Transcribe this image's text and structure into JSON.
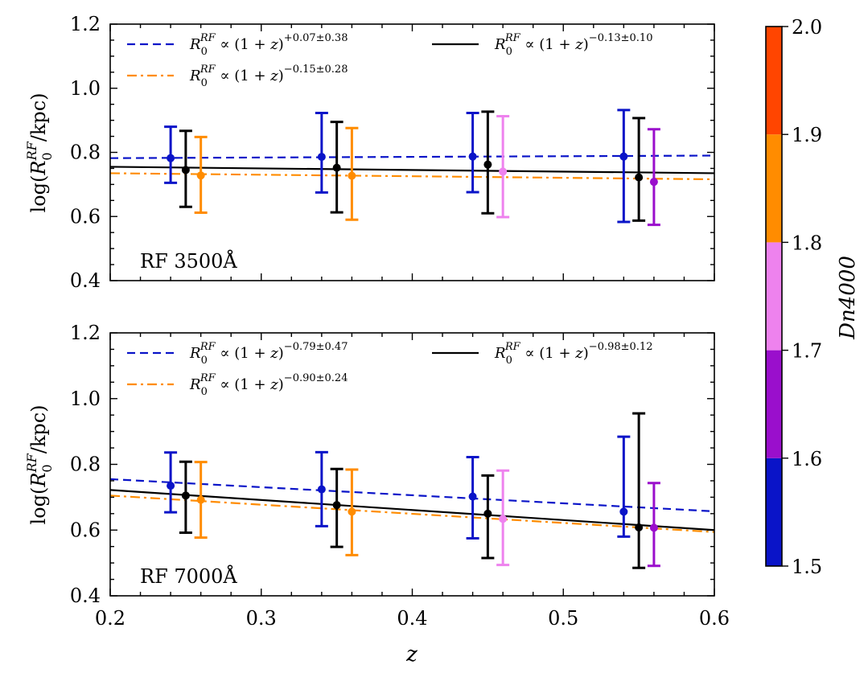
{
  "chart_data": {
    "type": "scatter",
    "xlabel": "z",
    "ylabel": "log(R0RF/kpc)",
    "xlim": [
      0.2,
      0.6
    ],
    "x_ticks": [
      "0.2",
      "0.3",
      "0.4",
      "0.5",
      "0.6"
    ],
    "colorbar": {
      "label": "Dn4000",
      "range": [
        1.5,
        2.0
      ],
      "ticks": [
        "1.5",
        "1.6",
        "1.7",
        "1.8",
        "1.9",
        "2.0"
      ],
      "bands": [
        {
          "from": 1.5,
          "to": 1.6,
          "color": "#0a14c8"
        },
        {
          "from": 1.6,
          "to": 1.7,
          "color": "#9a0fcc"
        },
        {
          "from": 1.7,
          "to": 1.8,
          "color": "#ee82ee"
        },
        {
          "from": 1.8,
          "to": 1.9,
          "color": "#ff8c00"
        },
        {
          "from": 1.9,
          "to": 2.0,
          "color": "#ff4500"
        }
      ]
    },
    "panels": [
      {
        "label": "RF 3500Å",
        "ylim": [
          0.4,
          1.2
        ],
        "y_ticks": [
          "0.4",
          "0.6",
          "0.8",
          "1.0",
          "1.2"
        ],
        "fits": [
          {
            "name": "blue",
            "style": "dashed",
            "color": "#0a14c8",
            "y_at_0.2": 0.782,
            "y_at_0.6": 0.79,
            "exponent": "+0.07±0.38"
          },
          {
            "name": "orange",
            "style": "dashdot",
            "color": "#ff8c00",
            "y_at_0.2": 0.735,
            "y_at_0.6": 0.716,
            "exponent": "−0.15±0.28"
          },
          {
            "name": "black",
            "style": "solid",
            "color": "#000000",
            "y_at_0.2": 0.755,
            "y_at_0.6": 0.735,
            "exponent": "−0.13±0.10"
          }
        ],
        "points": [
          {
            "x": 0.24,
            "y": 0.782,
            "lo": 0.705,
            "hi": 0.88,
            "color": "#0a14c8"
          },
          {
            "x": 0.25,
            "y": 0.745,
            "lo": 0.63,
            "hi": 0.867,
            "color": "#000000"
          },
          {
            "x": 0.26,
            "y": 0.728,
            "lo": 0.612,
            "hi": 0.848,
            "color": "#ff8c00"
          },
          {
            "x": 0.34,
            "y": 0.786,
            "lo": 0.675,
            "hi": 0.923,
            "color": "#0a14c8"
          },
          {
            "x": 0.35,
            "y": 0.752,
            "lo": 0.613,
            "hi": 0.895,
            "color": "#000000"
          },
          {
            "x": 0.36,
            "y": 0.727,
            "lo": 0.59,
            "hi": 0.876,
            "color": "#ff8c00"
          },
          {
            "x": 0.44,
            "y": 0.787,
            "lo": 0.676,
            "hi": 0.923,
            "color": "#0a14c8"
          },
          {
            "x": 0.45,
            "y": 0.762,
            "lo": 0.61,
            "hi": 0.927,
            "color": "#000000"
          },
          {
            "x": 0.46,
            "y": 0.74,
            "lo": 0.598,
            "hi": 0.913,
            "color": "#ee82ee"
          },
          {
            "x": 0.54,
            "y": 0.787,
            "lo": 0.583,
            "hi": 0.932,
            "color": "#0a14c8"
          },
          {
            "x": 0.55,
            "y": 0.722,
            "lo": 0.587,
            "hi": 0.907,
            "color": "#000000"
          },
          {
            "x": 0.56,
            "y": 0.708,
            "lo": 0.574,
            "hi": 0.872,
            "color": "#9a0fcc"
          }
        ]
      },
      {
        "label": "RF 7000Å",
        "ylim": [
          0.4,
          1.2
        ],
        "y_ticks": [
          "0.4",
          "0.6",
          "0.8",
          "1.0",
          "1.2"
        ],
        "fits": [
          {
            "name": "blue",
            "style": "dashed",
            "color": "#0a14c8",
            "y_at_0.2": 0.755,
            "y_at_0.6": 0.657,
            "exponent": "−0.79±0.47"
          },
          {
            "name": "orange",
            "style": "dashdot",
            "color": "#ff8c00",
            "y_at_0.2": 0.705,
            "y_at_0.6": 0.594,
            "exponent": "−0.90±0.24"
          },
          {
            "name": "black",
            "style": "solid",
            "color": "#000000",
            "y_at_0.2": 0.722,
            "y_at_0.6": 0.6,
            "exponent": "−0.98±0.12"
          }
        ],
        "points": [
          {
            "x": 0.24,
            "y": 0.735,
            "lo": 0.654,
            "hi": 0.836,
            "color": "#0a14c8"
          },
          {
            "x": 0.25,
            "y": 0.705,
            "lo": 0.592,
            "hi": 0.808,
            "color": "#000000"
          },
          {
            "x": 0.26,
            "y": 0.692,
            "lo": 0.577,
            "hi": 0.807,
            "color": "#ff8c00"
          },
          {
            "x": 0.34,
            "y": 0.724,
            "lo": 0.612,
            "hi": 0.837,
            "color": "#0a14c8"
          },
          {
            "x": 0.35,
            "y": 0.676,
            "lo": 0.549,
            "hi": 0.786,
            "color": "#000000"
          },
          {
            "x": 0.36,
            "y": 0.656,
            "lo": 0.524,
            "hi": 0.784,
            "color": "#ff8c00"
          },
          {
            "x": 0.44,
            "y": 0.702,
            "lo": 0.575,
            "hi": 0.822,
            "color": "#0a14c8"
          },
          {
            "x": 0.45,
            "y": 0.65,
            "lo": 0.515,
            "hi": 0.766,
            "color": "#000000"
          },
          {
            "x": 0.46,
            "y": 0.634,
            "lo": 0.494,
            "hi": 0.781,
            "color": "#ee82ee"
          },
          {
            "x": 0.54,
            "y": 0.656,
            "lo": 0.58,
            "hi": 0.884,
            "color": "#0a14c8"
          },
          {
            "x": 0.55,
            "y": 0.608,
            "lo": 0.485,
            "hi": 0.955,
            "color": "#000000"
          },
          {
            "x": 0.56,
            "y": 0.607,
            "lo": 0.491,
            "hi": 0.743,
            "color": "#9a0fcc"
          }
        ]
      }
    ]
  }
}
